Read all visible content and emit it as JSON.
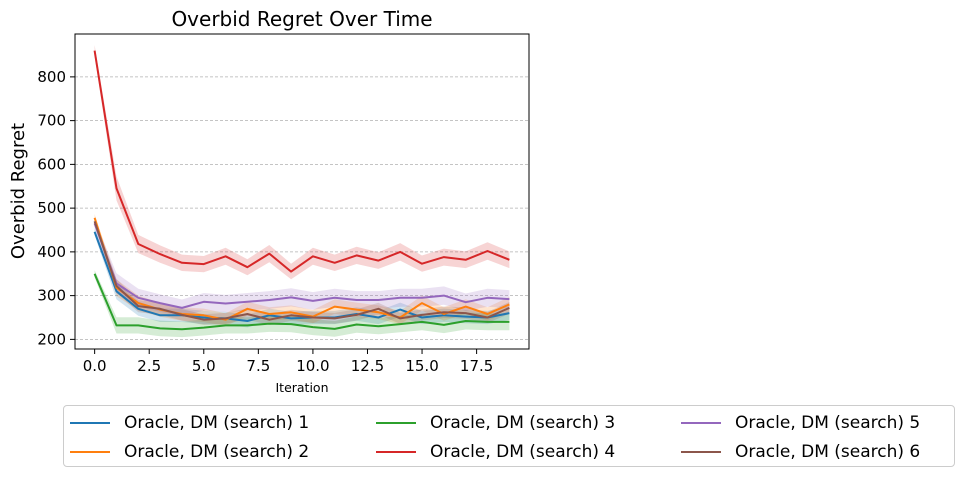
{
  "chart_data": {
    "type": "line",
    "title": "Overbid Regret Over Time",
    "xlabel": "Iteration",
    "ylabel": "Overbid Regret",
    "xlim": [
      -0.9,
      19.9
    ],
    "ylim": [
      178,
      898
    ],
    "xticks": [
      0.0,
      2.5,
      5.0,
      7.5,
      10.0,
      12.5,
      15.0,
      17.5
    ],
    "xtick_labels": [
      "0.0",
      "2.5",
      "5.0",
      "7.5",
      "10.0",
      "12.5",
      "15.0",
      "17.5"
    ],
    "yticks": [
      200,
      300,
      400,
      500,
      600,
      700,
      800
    ],
    "ytick_labels": [
      "200",
      "300",
      "400",
      "500",
      "600",
      "700",
      "800"
    ],
    "grid": "horizontal dashed",
    "legend_position": "bottom, 3 columns",
    "x": [
      0,
      1,
      2,
      3,
      4,
      5,
      6,
      7,
      8,
      9,
      10,
      11,
      12,
      13,
      14,
      15,
      16,
      17,
      18,
      19
    ],
    "series": [
      {
        "name": "Oracle, DM (search) 1",
        "color": "#1f77b4",
        "values": [
          446,
          310,
          270,
          255,
          255,
          250,
          248,
          242,
          255,
          248,
          250,
          250,
          258,
          250,
          268,
          250,
          255,
          252,
          250,
          260
        ]
      },
      {
        "name": "Oracle, DM (search) 2",
        "color": "#ff7f0e",
        "values": [
          478,
          318,
          283,
          268,
          258,
          255,
          245,
          270,
          258,
          262,
          252,
          275,
          268,
          262,
          250,
          283,
          258,
          275,
          258,
          280
        ]
      },
      {
        "name": "Oracle, DM (search) 3",
        "color": "#2ca02c",
        "values": [
          350,
          232,
          232,
          225,
          223,
          227,
          232,
          232,
          236,
          235,
          228,
          224,
          234,
          230,
          235,
          240,
          233,
          242,
          240,
          240
        ]
      },
      {
        "name": "Oracle, DM (search) 4",
        "color": "#d62728",
        "values": [
          860,
          545,
          418,
          395,
          375,
          372,
          390,
          365,
          396,
          355,
          390,
          375,
          392,
          380,
          400,
          373,
          388,
          382,
          402,
          382
        ]
      },
      {
        "name": "Oracle, DM (search) 5",
        "color": "#9467bd",
        "values": [
          465,
          328,
          295,
          283,
          272,
          286,
          282,
          286,
          290,
          296,
          288,
          295,
          290,
          290,
          295,
          295,
          300,
          285,
          295,
          292
        ]
      },
      {
        "name": "Oracle, DM (search) 6",
        "color": "#8c564b",
        "values": [
          470,
          322,
          276,
          270,
          256,
          245,
          248,
          258,
          245,
          255,
          250,
          248,
          256,
          270,
          248,
          256,
          262,
          260,
          250,
          272
        ]
      }
    ]
  }
}
